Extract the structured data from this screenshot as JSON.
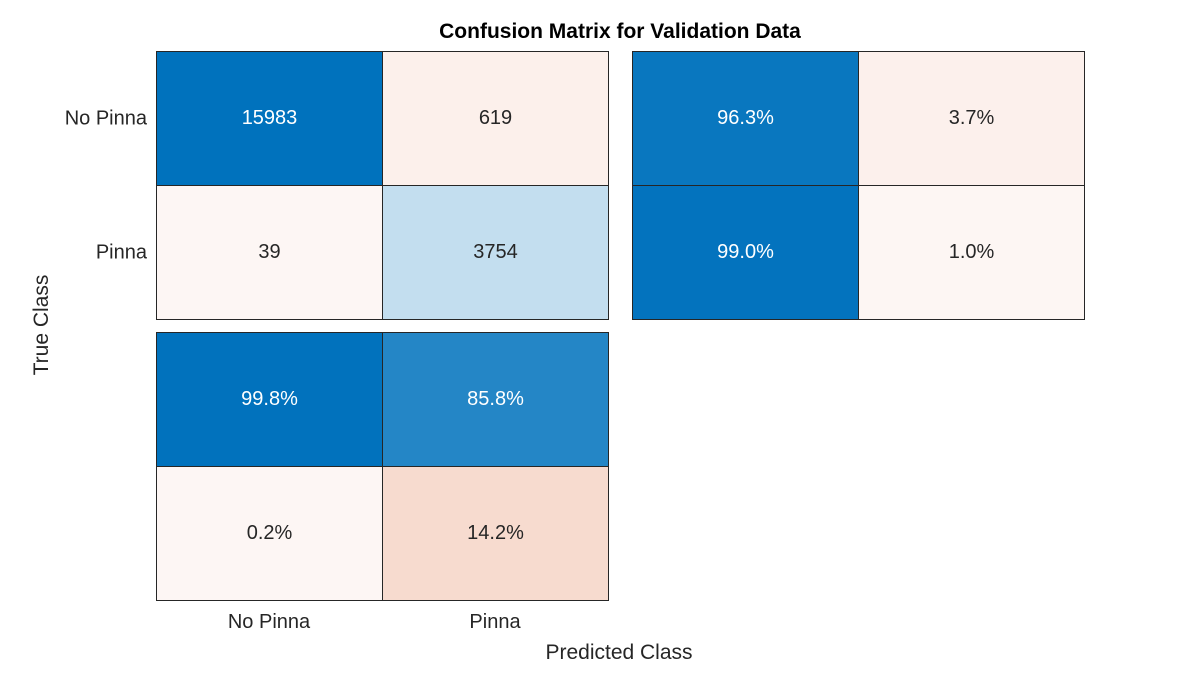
{
  "chart_data": {
    "type": "heatmap",
    "title": "Confusion Matrix for Validation Data",
    "xlabel": "Predicted Class",
    "ylabel": "True Class",
    "classes": [
      "No Pinna",
      "Pinna"
    ],
    "matrix": {
      "values": [
        [
          15983,
          619
        ],
        [
          39,
          3754
        ]
      ],
      "labels": [
        [
          "15983",
          "619"
        ],
        [
          "39",
          "3754"
        ]
      ]
    },
    "row_summary": {
      "values": [
        [
          96.3,
          3.7
        ],
        [
          99.0,
          1.0
        ]
      ],
      "labels": [
        [
          "96.3%",
          "3.7%"
        ],
        [
          "99.0%",
          "1.0%"
        ]
      ]
    },
    "column_summary": {
      "values": [
        [
          99.8,
          85.8
        ],
        [
          0.2,
          14.2
        ]
      ],
      "labels": [
        [
          "99.8%",
          "85.8%"
        ],
        [
          "0.2%",
          "14.2%"
        ]
      ]
    }
  },
  "colors": {
    "diagonal_dark": "#0072bd",
    "offdiagonal": "#d95319",
    "text_dark": "#262626",
    "text_light": "#ffffff"
  }
}
